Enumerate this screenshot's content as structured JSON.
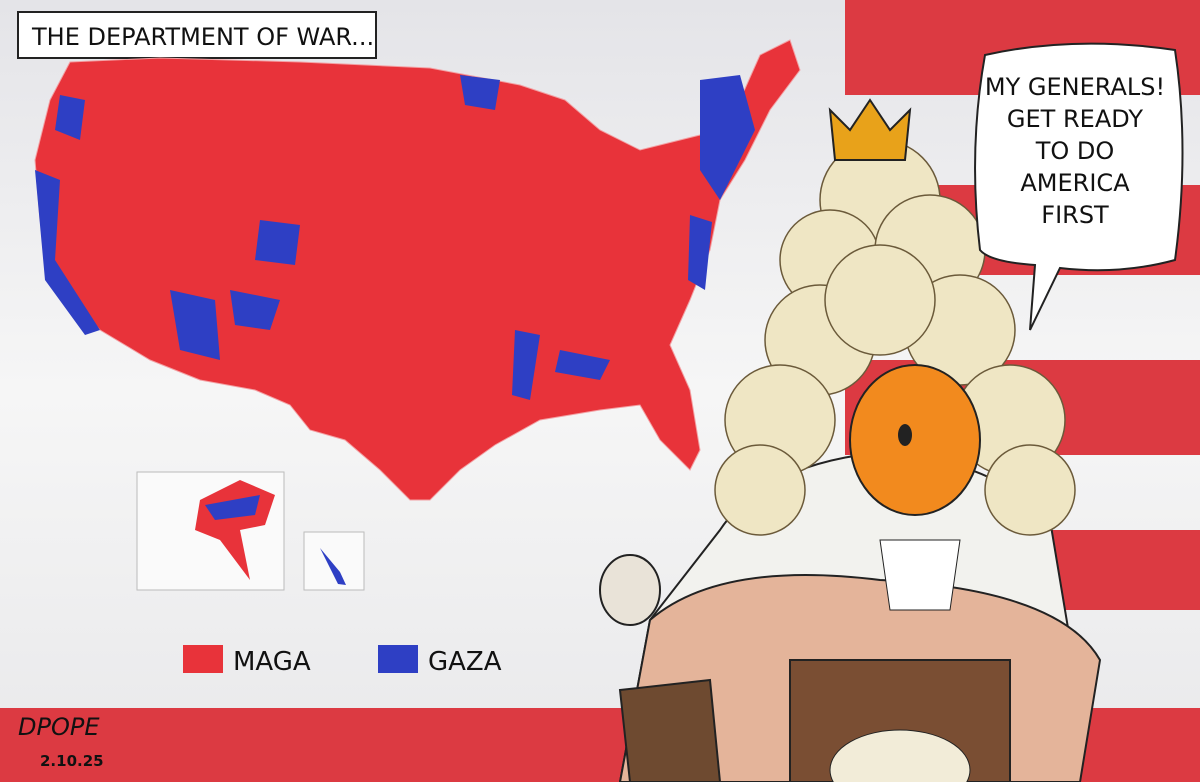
{
  "caption": "THE DEPARTMENT OF WAR...",
  "speech_bubble": {
    "lines": [
      "MY GENERALS!",
      "GET READY",
      "TO DO",
      "AMERICA",
      "FIRST"
    ]
  },
  "legend": {
    "items": [
      {
        "label": "MAGA",
        "color": "#e8333a"
      },
      {
        "label": "GAZA",
        "color": "#2e3fc4"
      }
    ]
  },
  "signature": {
    "name": "DPOPE",
    "date": "2.10.25"
  }
}
